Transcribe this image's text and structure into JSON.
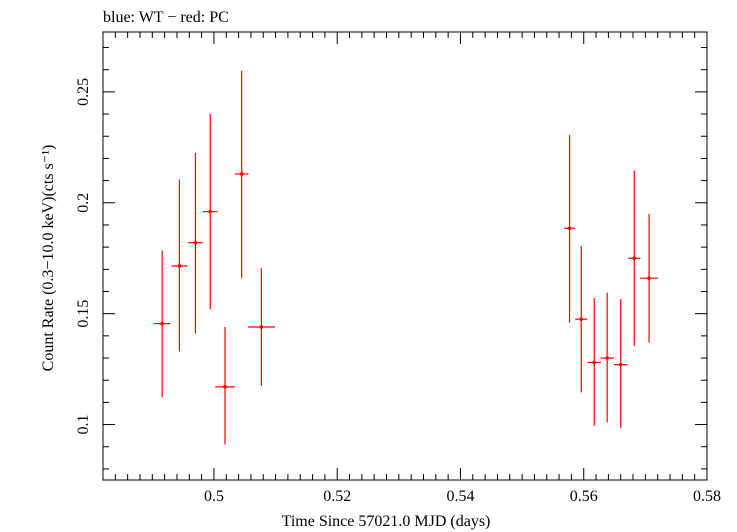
{
  "chart_data": {
    "type": "scatter",
    "title": "blue: WT − red: PC",
    "xlabel": "Time Since 57021.0 MJD (days)",
    "ylabel": "Count Rate (0.3−10.0 keV)(cts s⁻¹)",
    "xlim": [
      0.482,
      0.58
    ],
    "ylim": [
      0.075,
      0.277
    ],
    "xticks": [
      0.5,
      0.52,
      0.54,
      0.56,
      0.58
    ],
    "xtick_labels": [
      "0.5",
      "0.52",
      "0.54",
      "0.56",
      "0.58"
    ],
    "yticks": [
      0.1,
      0.15,
      0.2,
      0.25
    ],
    "ytick_labels": [
      "0.1",
      "0.15",
      "0.2",
      "0.25"
    ],
    "grid": false,
    "series": [
      {
        "name": "PC",
        "color": "#ff0000",
        "points": [
          {
            "x": 0.4916,
            "xerr": 0.0013,
            "y": 0.1455,
            "ylo": 0.1125,
            "yhi": 0.1785
          },
          {
            "x": 0.4944,
            "xerr": 0.0013,
            "y": 0.1715,
            "ylo": 0.133,
            "yhi": 0.2105
          },
          {
            "x": 0.497,
            "xerr": 0.0012,
            "y": 0.182,
            "ylo": 0.141,
            "yhi": 0.2225
          },
          {
            "x": 0.4994,
            "xerr": 0.0012,
            "y": 0.196,
            "ylo": 0.152,
            "yhi": 0.24
          },
          {
            "x": 0.5018,
            "xerr": 0.0016,
            "y": 0.117,
            "ylo": 0.091,
            "yhi": 0.144
          },
          {
            "x": 0.5045,
            "xerr": 0.0011,
            "y": 0.213,
            "ylo": 0.166,
            "yhi": 0.2595
          },
          {
            "x": 0.5077,
            "xerr": 0.0022,
            "y": 0.144,
            "ylo": 0.1175,
            "yhi": 0.1705
          },
          {
            "x": 0.5577,
            "xerr": 0.0009,
            "y": 0.1885,
            "ylo": 0.146,
            "yhi": 0.2305
          },
          {
            "x": 0.5596,
            "xerr": 0.001,
            "y": 0.1475,
            "ylo": 0.1145,
            "yhi": 0.1805
          },
          {
            "x": 0.5617,
            "xerr": 0.0011,
            "y": 0.128,
            "ylo": 0.0995,
            "yhi": 0.157
          },
          {
            "x": 0.5638,
            "xerr": 0.0011,
            "y": 0.13,
            "ylo": 0.101,
            "yhi": 0.1595
          },
          {
            "x": 0.566,
            "xerr": 0.0011,
            "y": 0.127,
            "ylo": 0.0985,
            "yhi": 0.1565
          },
          {
            "x": 0.5682,
            "xerr": 0.001,
            "y": 0.175,
            "ylo": 0.1355,
            "yhi": 0.2145
          },
          {
            "x": 0.5706,
            "xerr": 0.0015,
            "y": 0.166,
            "ylo": 0.137,
            "yhi": 0.195
          }
        ]
      }
    ]
  }
}
